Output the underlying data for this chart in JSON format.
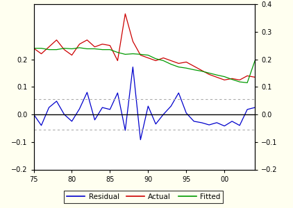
{
  "years": [
    1975,
    1976,
    1977,
    1978,
    1979,
    1980,
    1981,
    1982,
    1983,
    1984,
    1985,
    1986,
    1987,
    1988,
    1989,
    1990,
    1991,
    1992,
    1993,
    1994,
    1995,
    1996,
    1997,
    1998,
    1999,
    2000,
    2001,
    2002,
    2003,
    2004
  ],
  "actual": [
    0.24,
    0.22,
    0.245,
    0.27,
    0.235,
    0.215,
    0.255,
    0.27,
    0.245,
    0.255,
    0.25,
    0.195,
    0.365,
    0.265,
    0.215,
    0.205,
    0.195,
    0.205,
    0.195,
    0.185,
    0.19,
    0.175,
    0.16,
    0.145,
    0.135,
    0.125,
    0.13,
    0.125,
    0.14,
    0.135
  ],
  "fitted": [
    0.24,
    0.24,
    0.235,
    0.235,
    0.24,
    0.238,
    0.242,
    0.238,
    0.238,
    0.235,
    0.235,
    0.225,
    0.218,
    0.22,
    0.218,
    0.215,
    0.202,
    0.195,
    0.182,
    0.172,
    0.168,
    0.162,
    0.157,
    0.15,
    0.143,
    0.137,
    0.127,
    0.118,
    0.115,
    0.195
  ],
  "residual": [
    0.0,
    -0.04,
    0.025,
    0.048,
    0.0,
    -0.025,
    0.02,
    0.08,
    -0.02,
    0.025,
    0.018,
    0.078,
    -0.058,
    0.172,
    -0.092,
    0.03,
    -0.035,
    0.0,
    0.03,
    0.078,
    0.005,
    -0.025,
    -0.03,
    -0.038,
    -0.03,
    -0.042,
    -0.025,
    -0.04,
    0.018,
    0.025
  ],
  "se_band": 0.055,
  "ylim": [
    -0.2,
    0.4
  ],
  "left_yticks": [
    -0.2,
    -0.1,
    0.0,
    0.1,
    0.2
  ],
  "right_yticks": [
    -0.2,
    -0.1,
    0.0,
    0.1,
    0.2,
    0.3,
    0.4
  ],
  "xtick_vals": [
    1975,
    1980,
    1985,
    1990,
    1995,
    2000
  ],
  "xtick_labels": [
    "75",
    "80",
    "85",
    "90",
    "95",
    "00"
  ],
  "actual_color": "#cc0000",
  "fitted_color": "#009900",
  "residual_color": "#0000cc",
  "zero_line_color": "#000000",
  "band_color": "#aaaaaa",
  "bg_color": "#fffff0",
  "plot_bg": "#ffffff",
  "legend_labels": [
    "Residual",
    "Actual",
    "Fitted"
  ],
  "legend_colors": [
    "#0000cc",
    "#cc0000",
    "#009900"
  ]
}
